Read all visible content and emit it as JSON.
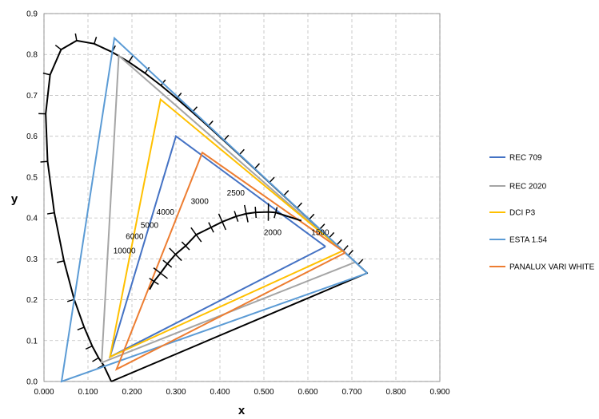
{
  "chart_data": {
    "type": "line",
    "xlabel": "x",
    "ylabel": "y",
    "xlim": [
      0,
      0.9
    ],
    "ylim": [
      0,
      0.9
    ],
    "x_ticks": [
      "0.000",
      "0.100",
      "0.200",
      "0.300",
      "0.400",
      "0.500",
      "0.600",
      "0.700",
      "0.800",
      "0.900"
    ],
    "y_ticks": [
      "0.0",
      "0.1",
      "0.2",
      "0.3",
      "0.4",
      "0.5",
      "0.6",
      "0.7",
      "0.8",
      "0.9"
    ],
    "grid": true,
    "legend_position": "right",
    "locus": {
      "color": "#000000",
      "points": [
        [
          0.153,
          0.0
        ],
        [
          0.1355,
          0.0399
        ],
        [
          0.1241,
          0.0578
        ],
        [
          0.1096,
          0.0868
        ],
        [
          0.0913,
          0.1327
        ],
        [
          0.0687,
          0.2007
        ],
        [
          0.0454,
          0.295
        ],
        [
          0.0235,
          0.4127
        ],
        [
          0.0082,
          0.5384
        ],
        [
          0.0039,
          0.6548
        ],
        [
          0.0139,
          0.7502
        ],
        [
          0.0389,
          0.812
        ],
        [
          0.0743,
          0.8338
        ],
        [
          0.1142,
          0.8262
        ],
        [
          0.1547,
          0.8059
        ],
        [
          0.1929,
          0.7816
        ],
        [
          0.2296,
          0.7543
        ],
        [
          0.2658,
          0.7243
        ],
        [
          0.3016,
          0.6923
        ],
        [
          0.3373,
          0.6589
        ],
        [
          0.3731,
          0.6245
        ],
        [
          0.4087,
          0.5896
        ],
        [
          0.4441,
          0.5547
        ],
        [
          0.4788,
          0.5202
        ],
        [
          0.5125,
          0.4866
        ],
        [
          0.5448,
          0.4544
        ],
        [
          0.5752,
          0.4242
        ],
        [
          0.6029,
          0.3965
        ],
        [
          0.627,
          0.3725
        ],
        [
          0.6482,
          0.3514
        ],
        [
          0.6658,
          0.334
        ],
        [
          0.6801,
          0.3197
        ],
        [
          0.6915,
          0.3083
        ],
        [
          0.714,
          0.286
        ],
        [
          0.7347,
          0.2653
        ],
        [
          0.7347,
          0.2653
        ],
        [
          0.153,
          0.0
        ]
      ]
    },
    "planckian": {
      "color": "#000000",
      "points": [
        [
          0.24,
          0.225
        ],
        [
          0.25,
          0.245
        ],
        [
          0.265,
          0.265
        ],
        [
          0.2805,
          0.288
        ],
        [
          0.299,
          0.311
        ],
        [
          0.3221,
          0.3318
        ],
        [
          0.346,
          0.359
        ],
        [
          0.38,
          0.377
        ],
        [
          0.4053,
          0.3906
        ],
        [
          0.437,
          0.404
        ],
        [
          0.4598,
          0.4105
        ],
        [
          0.4813,
          0.4137
        ],
        [
          0.5101,
          0.4145
        ],
        [
          0.5267,
          0.4133
        ],
        [
          0.5852,
          0.3932
        ]
      ]
    },
    "cct_labels": [
      {
        "text": "10000",
        "x": 0.183,
        "y": 0.313
      },
      {
        "text": "6000",
        "x": 0.206,
        "y": 0.348
      },
      {
        "text": "5000",
        "x": 0.24,
        "y": 0.376
      },
      {
        "text": "4000",
        "x": 0.276,
        "y": 0.408
      },
      {
        "text": "3000",
        "x": 0.354,
        "y": 0.434
      },
      {
        "text": "2500",
        "x": 0.436,
        "y": 0.455
      },
      {
        "text": "2000",
        "x": 0.52,
        "y": 0.358
      },
      {
        "text": "1500",
        "x": 0.628,
        "y": 0.358
      }
    ],
    "series": [
      {
        "name": "REC 709",
        "color": "#4472C4",
        "points": [
          [
            0.64,
            0.33
          ],
          [
            0.3,
            0.6
          ],
          [
            0.15,
            0.06
          ],
          [
            0.64,
            0.33
          ]
        ]
      },
      {
        "name": "REC 2020",
        "color": "#A5A5A5",
        "points": [
          [
            0.708,
            0.292
          ],
          [
            0.17,
            0.797
          ],
          [
            0.131,
            0.046
          ],
          [
            0.708,
            0.292
          ]
        ]
      },
      {
        "name": "DCI P3",
        "color": "#FFC000",
        "points": [
          [
            0.68,
            0.32
          ],
          [
            0.265,
            0.69
          ],
          [
            0.15,
            0.06
          ],
          [
            0.68,
            0.32
          ]
        ]
      },
      {
        "name": "ESTA 1.54",
        "color": "#5B9BD5",
        "points": [
          [
            0.735,
            0.265
          ],
          [
            0.16,
            0.84
          ],
          [
            0.04,
            0.0
          ],
          [
            0.735,
            0.265
          ]
        ]
      },
      {
        "name": "PANALUX VARI WHITE",
        "color": "#ED7D31",
        "points": [
          [
            0.685,
            0.315
          ],
          [
            0.36,
            0.56
          ],
          [
            0.165,
            0.03
          ],
          [
            0.685,
            0.315
          ]
        ]
      }
    ]
  }
}
